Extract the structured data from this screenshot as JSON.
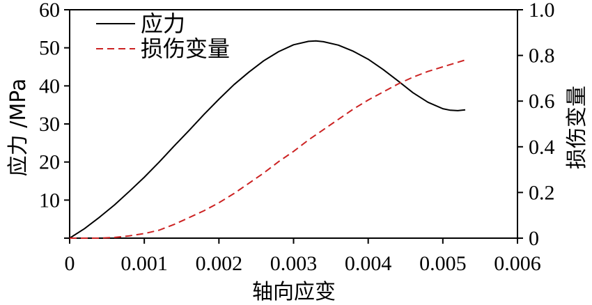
{
  "chart_data": {
    "type": "line",
    "xlabel": "轴向应变",
    "ylabel_left": "应力 /MPa",
    "ylabel_right": "损伤变量",
    "xlim": [
      0,
      0.006
    ],
    "ylim_left": [
      0,
      60
    ],
    "ylim_right": [
      0,
      1.0
    ],
    "x_ticks": [
      "0",
      "0.001",
      "0.002",
      "0.003",
      "0.004",
      "0.005",
      "0.006"
    ],
    "y_ticks_left": [
      "",
      "10",
      "20",
      "30",
      "40",
      "50",
      "60"
    ],
    "y_ticks_right": [
      "0",
      "0.2",
      "0.4",
      "0.6",
      "0.8",
      "1.0"
    ],
    "legend_position": "top-left",
    "grid": false,
    "series": [
      {
        "name": "应力",
        "axis": "left",
        "color": "#000000",
        "style": "solid",
        "x": [
          0,
          0.0002,
          0.0004,
          0.0006,
          0.0008,
          0.001,
          0.0012,
          0.0014,
          0.0016,
          0.0018,
          0.002,
          0.0022,
          0.0024,
          0.0026,
          0.0028,
          0.003,
          0.0032,
          0.0033,
          0.0034,
          0.0036,
          0.0038,
          0.004,
          0.0042,
          0.0044,
          0.0046,
          0.0048,
          0.005,
          0.0051,
          0.0052,
          0.0053
        ],
        "values": [
          0,
          2.5,
          5.5,
          8.7,
          12.3,
          16.0,
          20.0,
          24.2,
          28.3,
          32.5,
          36.5,
          40.3,
          43.6,
          46.6,
          49.0,
          50.8,
          51.7,
          51.8,
          51.6,
          50.7,
          49.1,
          47.0,
          44.3,
          41.3,
          38.2,
          35.7,
          34.0,
          33.6,
          33.5,
          33.7
        ]
      },
      {
        "name": "损伤变量",
        "axis": "right",
        "color": "#cc2222",
        "style": "dashed",
        "x": [
          0,
          0.0002,
          0.0004,
          0.0006,
          0.0008,
          0.001,
          0.0012,
          0.0014,
          0.0016,
          0.0018,
          0.002,
          0.0022,
          0.0024,
          0.0026,
          0.0028,
          0.003,
          0.0032,
          0.0034,
          0.0036,
          0.0038,
          0.004,
          0.0042,
          0.0044,
          0.0046,
          0.0048,
          0.005,
          0.0052,
          0.0053
        ],
        "values": [
          0,
          0.0,
          0.0,
          0.003,
          0.01,
          0.02,
          0.035,
          0.06,
          0.09,
          0.12,
          0.155,
          0.195,
          0.24,
          0.285,
          0.335,
          0.38,
          0.43,
          0.475,
          0.52,
          0.565,
          0.605,
          0.64,
          0.675,
          0.705,
          0.73,
          0.75,
          0.77,
          0.78
        ]
      }
    ]
  }
}
